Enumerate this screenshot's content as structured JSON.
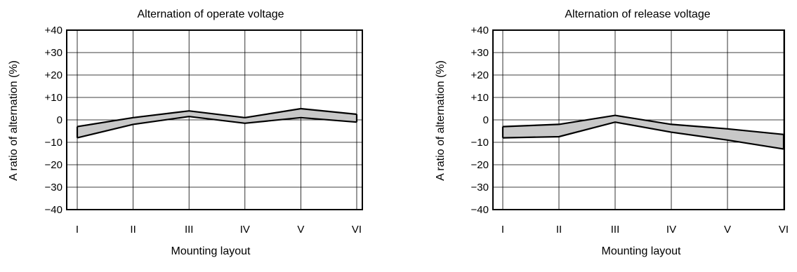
{
  "chart_data": [
    {
      "type": "area",
      "title": "Alternation of operate voltage",
      "xlabel": "Mounting layout",
      "ylabel": "A ratio of alternation (%)",
      "categories": [
        "I",
        "II",
        "III",
        "IV",
        "V",
        "VI"
      ],
      "yticks": [
        "+40",
        "+30",
        "+20",
        "+10",
        "0",
        "−10",
        "−20",
        "−30",
        "−40"
      ],
      "ylim": [
        -40,
        40
      ],
      "grid": true,
      "band_color": "#c8c8c8",
      "series": [
        {
          "values": [
            -3,
            1,
            4,
            1,
            5,
            2.5
          ]
        },
        {
          "values": [
            -8,
            -2,
            1.5,
            -1.5,
            1,
            -1
          ]
        }
      ]
    },
    {
      "type": "area",
      "title": "Alternation of release voltage",
      "xlabel": "Mounting layout",
      "ylabel": "A ratio of alternation (%)",
      "categories": [
        "I",
        "II",
        "III",
        "IV",
        "V",
        "VI"
      ],
      "yticks": [
        "+40",
        "+30",
        "+20",
        "+10",
        "0",
        "−10",
        "−20",
        "−30",
        "−40"
      ],
      "ylim": [
        -40,
        40
      ],
      "grid": true,
      "band_color": "#c8c8c8",
      "series": [
        {
          "values": [
            -3,
            -2,
            2,
            -2,
            -4,
            -6.5
          ]
        },
        {
          "values": [
            -8,
            -7.5,
            -1,
            -5.5,
            -9,
            -13
          ]
        }
      ]
    }
  ]
}
